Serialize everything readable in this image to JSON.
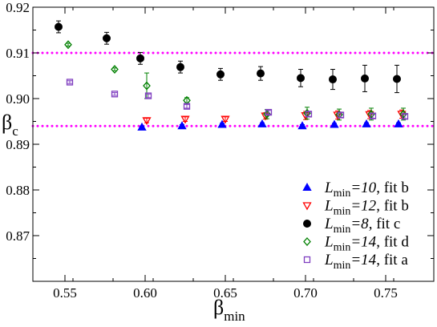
{
  "chart_data": {
    "type": "scatter",
    "xlabel": "β",
    "xlabel_sub": "min",
    "ylabel": "β",
    "ylabel_sub": "c",
    "xlim": [
      0.53,
      0.78
    ],
    "ylim": [
      0.86,
      0.92
    ],
    "xticks": [
      0.55,
      0.6,
      0.65,
      0.7,
      0.75
    ],
    "xtick_labels": [
      "0.55",
      "0.60",
      "0.65",
      "0.70",
      "0.75"
    ],
    "yticks": [
      0.87,
      0.88,
      0.89,
      0.9,
      0.91,
      0.92
    ],
    "ytick_labels": [
      "0.87",
      "0.88",
      "0.89",
      "0.90",
      "0.91",
      "0.92"
    ],
    "grid": false,
    "legend_position": "bottom-right",
    "reference_lines": [
      {
        "y": 0.894,
        "color": "#ff00ff",
        "style": "dotted"
      },
      {
        "y": 0.91,
        "color": "#ff00ff",
        "style": "dotted"
      }
    ],
    "series": [
      {
        "legend_parts": [
          "L",
          "min",
          "=10",
          ", fit b"
        ],
        "marker": "triangle-up",
        "filled": true,
        "color": "#0000ff",
        "points": [
          {
            "x": 0.598,
            "y": 0.8937,
            "err": 0.0003
          },
          {
            "x": 0.623,
            "y": 0.894,
            "err": 0.0003
          },
          {
            "x": 0.648,
            "y": 0.8943,
            "err": 0.0003
          },
          {
            "x": 0.673,
            "y": 0.8944,
            "err": 0.0003
          },
          {
            "x": 0.698,
            "y": 0.894,
            "err": 0.0003
          },
          {
            "x": 0.718,
            "y": 0.8943,
            "err": 0.0003
          },
          {
            "x": 0.738,
            "y": 0.8944,
            "err": 0.0003
          },
          {
            "x": 0.758,
            "y": 0.8944,
            "err": 0.0003
          }
        ]
      },
      {
        "legend_parts": [
          "L",
          "min",
          "=12",
          ", fit b"
        ],
        "marker": "triangle-down",
        "filled": false,
        "color": "#ff0000",
        "points": [
          {
            "x": 0.601,
            "y": 0.8952,
            "err": 0.0005
          },
          {
            "x": 0.625,
            "y": 0.8955,
            "err": 0.0005
          },
          {
            "x": 0.65,
            "y": 0.8955,
            "err": 0.0005
          },
          {
            "x": 0.675,
            "y": 0.8962,
            "err": 0.0007
          },
          {
            "x": 0.7,
            "y": 0.8963,
            "err": 0.0009
          },
          {
            "x": 0.72,
            "y": 0.8964,
            "err": 0.0009
          },
          {
            "x": 0.74,
            "y": 0.8965,
            "err": 0.0009
          },
          {
            "x": 0.76,
            "y": 0.8966,
            "err": 0.0009
          }
        ]
      },
      {
        "legend_parts": [
          "L",
          "min",
          "=8",
          ",   fit c"
        ],
        "marker": "circle",
        "filled": true,
        "color": "#000000",
        "points": [
          {
            "x": 0.546,
            "y": 0.9157,
            "err": 0.0013
          },
          {
            "x": 0.576,
            "y": 0.9132,
            "err": 0.0013
          },
          {
            "x": 0.597,
            "y": 0.9088,
            "err": 0.0013
          },
          {
            "x": 0.622,
            "y": 0.9069,
            "err": 0.0013
          },
          {
            "x": 0.647,
            "y": 0.9053,
            "err": 0.0013
          },
          {
            "x": 0.672,
            "y": 0.9055,
            "err": 0.0015
          },
          {
            "x": 0.697,
            "y": 0.9045,
            "err": 0.0019
          },
          {
            "x": 0.717,
            "y": 0.9042,
            "err": 0.0022
          },
          {
            "x": 0.737,
            "y": 0.9044,
            "err": 0.0029
          },
          {
            "x": 0.757,
            "y": 0.9043,
            "err": 0.003
          }
        ]
      },
      {
        "legend_parts": [
          "L",
          "min",
          "=14",
          ", fit d"
        ],
        "marker": "diamond",
        "filled": false,
        "color": "#008000",
        "points": [
          {
            "x": 0.552,
            "y": 0.9118,
            "err": 0.0003
          },
          {
            "x": 0.581,
            "y": 0.9064,
            "err": 0.0003
          },
          {
            "x": 0.601,
            "y": 0.9028,
            "err": 0.0028
          },
          {
            "x": 0.626,
            "y": 0.8996,
            "err": 0.0006
          },
          {
            "x": 0.676,
            "y": 0.8966,
            "err": 0.001
          },
          {
            "x": 0.701,
            "y": 0.8968,
            "err": 0.0013
          },
          {
            "x": 0.721,
            "y": 0.8965,
            "err": 0.0012
          },
          {
            "x": 0.741,
            "y": 0.8966,
            "err": 0.0013
          },
          {
            "x": 0.761,
            "y": 0.8966,
            "err": 0.0013
          }
        ]
      },
      {
        "legend_parts": [
          "L",
          "min",
          "=14",
          ", fit a"
        ],
        "marker": "square",
        "filled": false,
        "color": "#8040c0",
        "points": [
          {
            "x": 0.553,
            "y": 0.9036,
            "err": 0.0003
          },
          {
            "x": 0.581,
            "y": 0.901,
            "err": 0.0003
          },
          {
            "x": 0.602,
            "y": 0.9006,
            "err": 0.0004
          },
          {
            "x": 0.626,
            "y": 0.8983,
            "err": 0.0004
          },
          {
            "x": 0.677,
            "y": 0.897,
            "err": 0.0004
          },
          {
            "x": 0.702,
            "y": 0.8966,
            "err": 0.0005
          },
          {
            "x": 0.722,
            "y": 0.8964,
            "err": 0.0005
          },
          {
            "x": 0.742,
            "y": 0.8962,
            "err": 0.0005
          },
          {
            "x": 0.762,
            "y": 0.8961,
            "err": 0.0005
          }
        ]
      }
    ]
  }
}
